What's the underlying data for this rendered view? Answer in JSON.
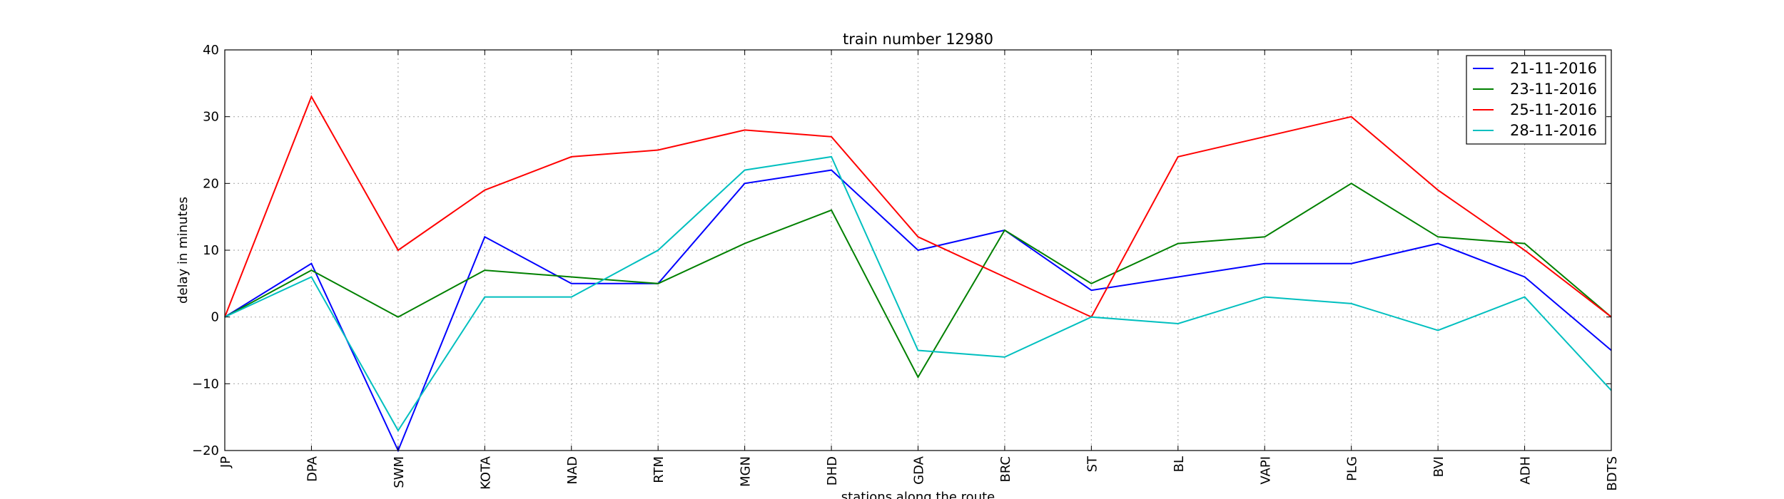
{
  "chart_data": {
    "type": "line",
    "title": "train number 12980",
    "xlabel": "stations along the route",
    "ylabel": "delay in minutes",
    "categories": [
      "JP",
      "DPA",
      "SWM",
      "KOTA",
      "NAD",
      "RTM",
      "MGN",
      "DHD",
      "GDA",
      "BRC",
      "ST",
      "BL",
      "VAPI",
      "PLG",
      "BVI",
      "ADH",
      "BDTS"
    ],
    "ylim": [
      -20,
      40
    ],
    "yticks": [
      "−20",
      "−10",
      "0",
      "10",
      "20",
      "30",
      "40"
    ],
    "grid": true,
    "legend_position": "top-right",
    "series": [
      {
        "name": "21-11-2016",
        "color": "#0000ff",
        "values": [
          0,
          8,
          -20,
          12,
          5,
          5,
          20,
          22,
          10,
          13,
          4,
          6,
          8,
          8,
          11,
          6,
          -5
        ]
      },
      {
        "name": "23-11-2016",
        "color": "#008000",
        "values": [
          0,
          7,
          0,
          7,
          6,
          5,
          11,
          16,
          -9,
          13,
          5,
          11,
          12,
          20,
          12,
          11,
          0
        ]
      },
      {
        "name": "25-11-2016",
        "color": "#ff0000",
        "values": [
          0,
          33,
          10,
          19,
          24,
          25,
          28,
          27,
          12,
          6,
          0,
          24,
          27,
          30,
          19,
          10,
          0
        ]
      },
      {
        "name": "28-11-2016",
        "color": "#00bfbf",
        "values": [
          0,
          6,
          -17,
          3,
          3,
          10,
          22,
          24,
          -5,
          -6,
          0,
          -1,
          3,
          2,
          -2,
          3,
          -11
        ]
      }
    ]
  }
}
